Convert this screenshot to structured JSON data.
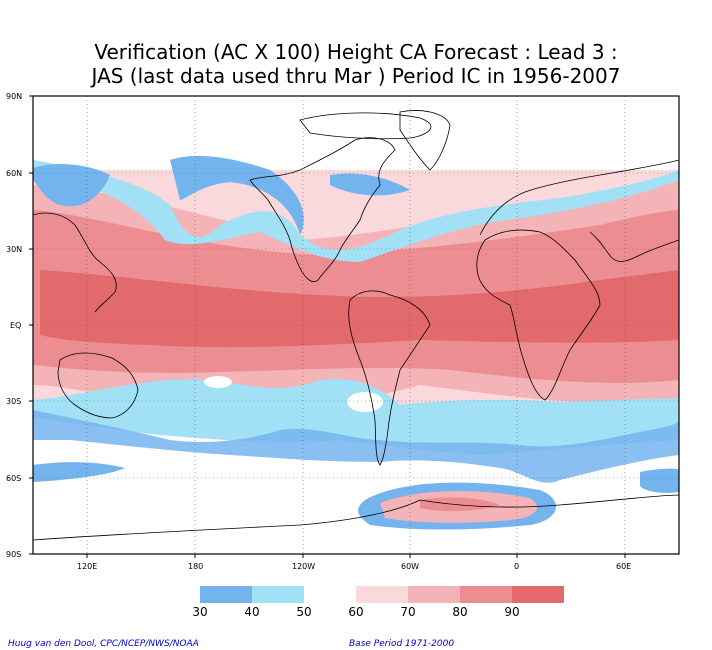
{
  "title": {
    "line1": "Verification (AC X 100) Height CA Forecast : Lead 3 :",
    "line2": "JAS (last data used thru Mar ) Period IC in 1956-2007"
  },
  "lat_labels": [
    "90N",
    "60N",
    "30N",
    "EQ",
    "30S",
    "60S",
    "90S"
  ],
  "lon_labels": [
    "120E",
    "180",
    "120W",
    "60W",
    "0",
    "60E"
  ],
  "legend": {
    "labels": [
      "30",
      "40",
      "50",
      "60",
      "70",
      "80",
      "90"
    ],
    "colors": [
      "#74b4ee",
      "#a2e0f5",
      "#ffffff",
      "#fad9dc",
      "#f4b3b6",
      "#ec8e91",
      "#e2696c"
    ]
  },
  "footer": {
    "left": "Huug van den Dool, CPC/NCEP/NWS/NOAA",
    "right": "Base Period 1971-2000"
  },
  "colors": {
    "ac_30_40": "#74b4ee",
    "ac_40_50": "#a2e0f5",
    "ac_60_70": "#fad9dc",
    "ac_70_80": "#f4b3b6",
    "ac_80_90": "#ec8e91",
    "ac_90_plus": "#e2696c"
  }
}
